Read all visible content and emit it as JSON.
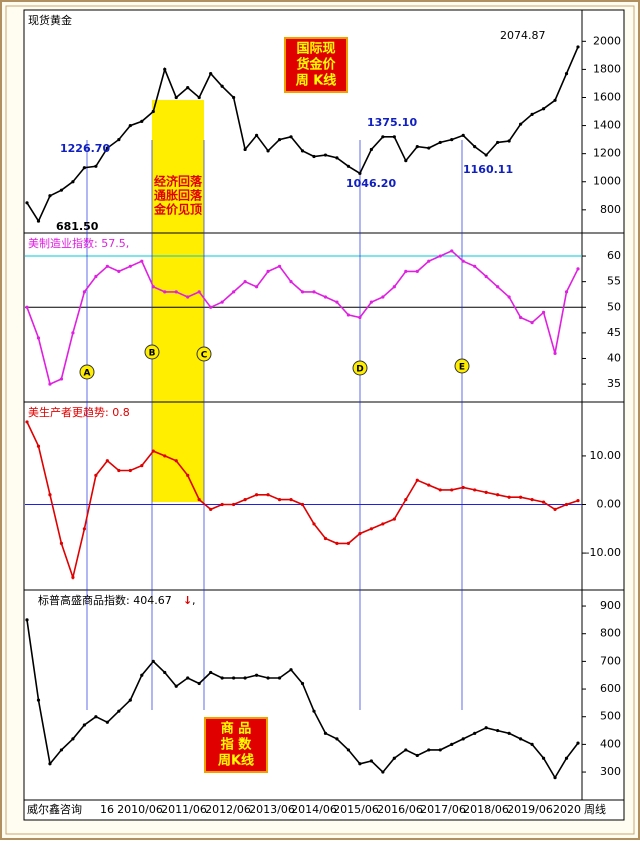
{
  "chart_data": [
    {
      "type": "line",
      "title": "现货黄金",
      "color": "#000000",
      "values": [
        850,
        720,
        900,
        940,
        1000,
        1100,
        1110,
        1240,
        1300,
        1400,
        1430,
        1500,
        1800,
        1600,
        1670,
        1600,
        1770,
        1680,
        1600,
        1230,
        1330,
        1220,
        1300,
        1320,
        1220,
        1180,
        1190,
        1170,
        1110,
        1060,
        1230,
        1320,
        1320,
        1150,
        1250,
        1240,
        1280,
        1300,
        1330,
        1250,
        1190,
        1280,
        1290,
        1410,
        1480,
        1520,
        1580,
        1770,
        1960
      ],
      "ylim": [
        635,
        2223
      ],
      "yticks": [
        800,
        1000,
        1200,
        1400,
        1600,
        1800,
        2000
      ],
      "price_labels": [
        "2074.87",
        "1226.70",
        "681.50",
        "1375.10",
        "1046.20",
        "1160.11"
      ],
      "box_text": [
        "国际现",
        "货金价",
        "周 K线"
      ],
      "highlight_text": [
        "经济回落",
        "通胀回落",
        "金价见顶"
      ]
    },
    {
      "type": "line",
      "title": "美制造业指数: 57.5,",
      "color": "#e020e0",
      "values": [
        50,
        44,
        35,
        36,
        45,
        53,
        56,
        58,
        57,
        58,
        59,
        54,
        53,
        53,
        52,
        53,
        50,
        51,
        53,
        55,
        54,
        57,
        58,
        55,
        53,
        53,
        52,
        51,
        48.5,
        48,
        51,
        52,
        54,
        57,
        57,
        59,
        60,
        61,
        59,
        58,
        56,
        54,
        52,
        48,
        47,
        49,
        41,
        53,
        57.5
      ],
      "ylim": [
        31.5,
        64.5
      ],
      "yticks": [
        35,
        40,
        45,
        50,
        55,
        60
      ],
      "reference_lines": [
        {
          "value": 60,
          "color": "#00c8d8"
        },
        {
          "value": 50,
          "color": "#000000"
        }
      ],
      "markers": [
        "A",
        "B",
        "C",
        "D",
        "E"
      ]
    },
    {
      "type": "line",
      "title": "美生产者更趋势: 0.8",
      "color": "#e00000",
      "values": [
        17,
        12,
        2,
        -8,
        -15,
        -5,
        6,
        9,
        7,
        7,
        8,
        11,
        10,
        9,
        6,
        1,
        -1,
        0,
        0,
        1,
        2,
        2,
        1,
        1,
        0,
        -4,
        -7,
        -8,
        -8,
        -6,
        -5,
        -4,
        -3,
        1,
        5,
        4,
        3,
        3,
        3.5,
        3,
        2.5,
        2,
        1.5,
        1.5,
        1,
        0.5,
        -1,
        0,
        0.8
      ],
      "ylim": [
        -17.6,
        21.1
      ],
      "yticks": [
        {
          "value": -10,
          "label": "-10.00"
        },
        {
          "value": 0,
          "label": "0.00"
        },
        {
          "value": 10,
          "label": "10.00"
        }
      ],
      "reference_lines": [
        {
          "value": 0,
          "color": "#2020e0"
        }
      ]
    },
    {
      "type": "line",
      "title": "标普高盛商品指数: 404.67",
      "trend_arrow": "↓",
      "title_suffix": ",",
      "color": "#000000",
      "values": [
        850,
        560,
        330,
        380,
        420,
        470,
        500,
        480,
        520,
        560,
        650,
        700,
        660,
        610,
        640,
        620,
        660,
        640,
        640,
        640,
        650,
        640,
        640,
        670,
        620,
        520,
        440,
        420,
        380,
        330,
        340,
        300,
        350,
        380,
        360,
        380,
        380,
        400,
        420,
        440,
        460,
        450,
        440,
        420,
        400,
        350,
        280,
        350,
        404.67
      ],
      "ylim": [
        199,
        958
      ],
      "yticks": [
        300,
        400,
        500,
        600,
        700,
        800,
        900
      ],
      "box_text": [
        "商 品",
        "指 数",
        "周K线"
      ]
    }
  ],
  "x_axis": {
    "left_label": "威尔鑫咨询",
    "labels": [
      "16",
      "2010/06",
      "2011/06",
      "2012/06",
      "2013/06",
      "2014/06",
      "2015/06",
      "2016/06",
      "2017/06",
      "2018/06",
      "2019/06",
      "2020"
    ],
    "right_label": "周线"
  }
}
